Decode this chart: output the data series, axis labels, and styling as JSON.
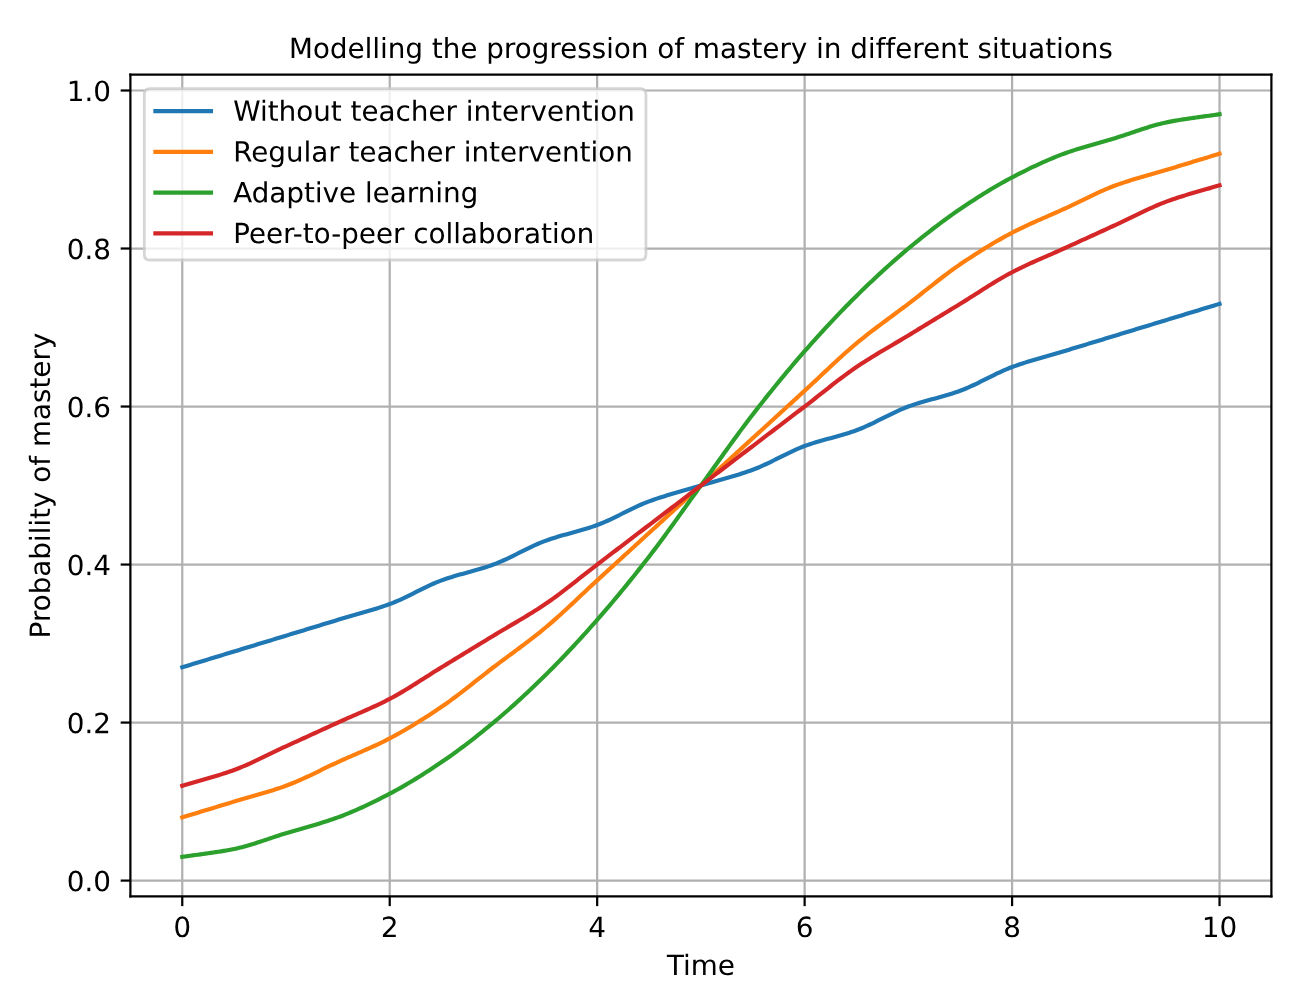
{
  "chart_data": {
    "type": "line",
    "title": "Modelling the progression of mastery in different situations",
    "xlabel": "Time",
    "ylabel": "Probability of mastery",
    "x": [
      0,
      0.5,
      1,
      1.5,
      2,
      2.5,
      3,
      3.5,
      4,
      4.5,
      5,
      5.5,
      6,
      6.5,
      7,
      7.5,
      8,
      8.5,
      9,
      9.5,
      10
    ],
    "series": [
      {
        "name": "Without teacher intervention",
        "color": "#1f77b4",
        "values": [
          0.27,
          0.29,
          0.31,
          0.33,
          0.35,
          0.38,
          0.4,
          0.43,
          0.45,
          0.48,
          0.5,
          0.52,
          0.55,
          0.57,
          0.6,
          0.62,
          0.65,
          0.67,
          0.69,
          0.71,
          0.73
        ]
      },
      {
        "name": "Regular teacher intervention",
        "color": "#ff7f0e",
        "values": [
          0.08,
          0.1,
          0.12,
          0.15,
          0.18,
          0.22,
          0.27,
          0.32,
          0.38,
          0.44,
          0.5,
          0.56,
          0.62,
          0.68,
          0.73,
          0.78,
          0.82,
          0.85,
          0.88,
          0.9,
          0.92
        ]
      },
      {
        "name": "Adaptive learning",
        "color": "#2ca02c",
        "values": [
          0.03,
          0.04,
          0.06,
          0.08,
          0.11,
          0.15,
          0.2,
          0.26,
          0.33,
          0.41,
          0.5,
          0.59,
          0.67,
          0.74,
          0.8,
          0.85,
          0.89,
          0.92,
          0.94,
          0.96,
          0.97
        ]
      },
      {
        "name": "Peer-to-peer collaboration",
        "color": "#d62728",
        "values": [
          0.12,
          0.14,
          0.17,
          0.2,
          0.23,
          0.27,
          0.31,
          0.35,
          0.4,
          0.45,
          0.5,
          0.55,
          0.6,
          0.65,
          0.69,
          0.73,
          0.77,
          0.8,
          0.83,
          0.86,
          0.88
        ]
      }
    ],
    "xlim": [
      -0.5,
      10.5
    ],
    "xticks": [
      0,
      2,
      4,
      6,
      8,
      10
    ],
    "ylim": [
      -0.02,
      1.02
    ],
    "yticks": [
      {
        "value": 0,
        "label": "0.0"
      },
      {
        "value": 0.2,
        "label": "0.2"
      },
      {
        "value": 0.4,
        "label": "0.4"
      },
      {
        "value": 0.6,
        "label": "0.6"
      },
      {
        "value": 0.8,
        "label": "0.8"
      },
      {
        "value": 1,
        "label": "1.0"
      }
    ],
    "grid": true,
    "legend": "top left",
    "marker": "none",
    "line_style": "solid"
  }
}
